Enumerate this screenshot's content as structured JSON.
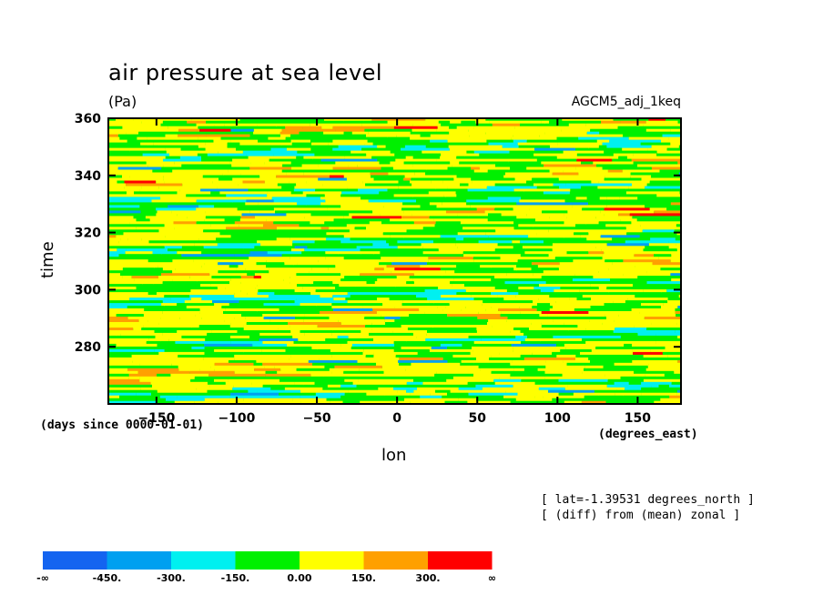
{
  "chart_data": {
    "type": "heatmap",
    "title": "air pressure at sea level",
    "units": "(Pa)",
    "dataset": "AGCM5_adj_1keq",
    "xlabel": "lon",
    "ylabel": "time",
    "x_units": "(degrees_east)",
    "y_units": "(days since 0000-01-01)",
    "xlim": [
      -180,
      177
    ],
    "ylim": [
      260,
      360
    ],
    "x_ticks": [
      -150,
      -100,
      -50,
      0,
      50,
      100,
      150
    ],
    "y_ticks": [
      280,
      300,
      320,
      340,
      360
    ],
    "x_tick_labels": [
      "−150",
      "−100",
      "−50",
      "0",
      "50",
      "100",
      "150"
    ],
    "y_tick_labels": [
      "280",
      "300",
      "320",
      "340",
      "360"
    ],
    "annotations": [
      "[ lat=-1.39531 degrees_north ]",
      "[ (diff) from (mean) zonal ]"
    ],
    "colorbar": {
      "boundaries": [
        "-∞",
        "-450.",
        "-300.",
        "-150.",
        "0.00",
        "150.",
        "300.",
        "∞"
      ],
      "colors": [
        "#1464f0",
        "#00a0f0",
        "#00f0f0",
        "#00f000",
        "#ffff00",
        "#ffa000",
        "#ff0000"
      ]
    }
  }
}
